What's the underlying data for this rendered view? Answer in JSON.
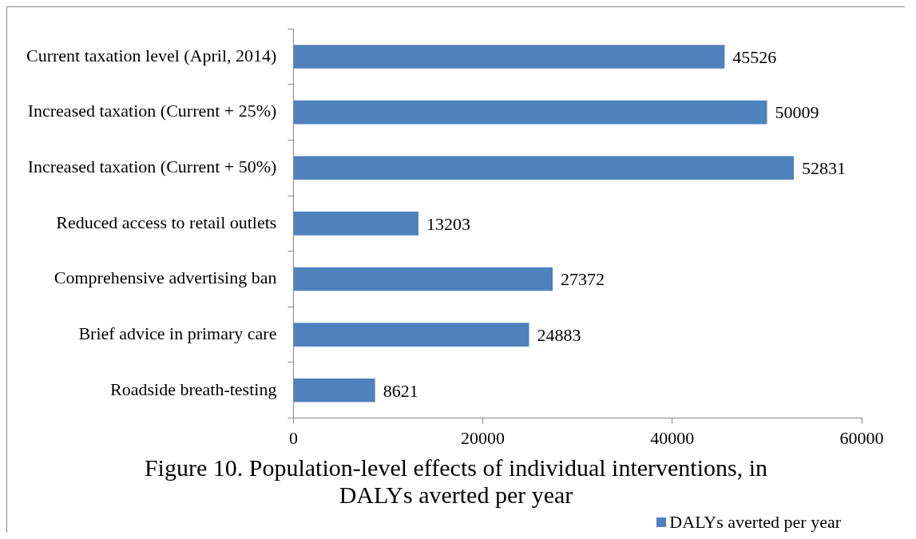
{
  "chart_data": {
    "type": "bar",
    "orientation": "horizontal",
    "title": "Figure 10. Population-level effects of individual interventions, in DALYs averted per year",
    "categories": [
      "Current taxation level (April, 2014)",
      "Increased taxation (Current + 25%)",
      "Increased taxation (Current + 50%)",
      "Reduced access to retail outlets",
      "Comprehensive advertising ban",
      "Brief advice in primary care",
      "Roadside breath-testing"
    ],
    "series": [
      {
        "name": "DALYs averted per year",
        "color": "#4f81bd",
        "values": [
          45526,
          50009,
          52831,
          13203,
          27372,
          24883,
          8621
        ]
      }
    ],
    "xlim": [
      0,
      60000
    ],
    "xticks": [
      0,
      20000,
      40000,
      60000
    ],
    "data_labels": true,
    "grid": false,
    "legend": "bottom right"
  }
}
